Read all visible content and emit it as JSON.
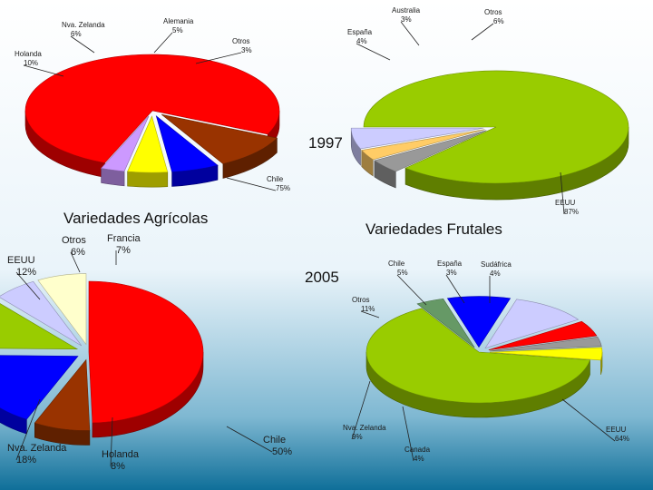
{
  "slide": {
    "title_1997": "1997",
    "title_2005": "2005",
    "heading_agricolas": "Variedades Agrícolas",
    "heading_frutales": "Variedades Frutales"
  },
  "colors": {
    "red": "#ff0000",
    "green": "#99cc00",
    "blue": "#0000ff",
    "brown": "#993300",
    "yellow": "#ffff00",
    "lavender": "#ccccff",
    "orchid": "#cc99ff",
    "gray": "#999999",
    "orange": "#ffcc66",
    "darkgreen": "#669966",
    "cream": "#ffffcc",
    "background_light": "#eaf4fa",
    "background_dark": "#0f6f99"
  },
  "chart_data": [
    {
      "type": "pie",
      "year": "1997",
      "group": "Variedades Agrícolas",
      "slices": [
        {
          "label": "Chile",
          "value_text": "75%",
          "value": 75,
          "color": "red"
        },
        {
          "label": "Holanda",
          "value_text": "10%",
          "value": 10,
          "color": "brown"
        },
        {
          "label": "Nva. Zelanda",
          "value_text": "6%",
          "value": 6,
          "color": "blue"
        },
        {
          "label": "Alemania",
          "value_text": "5%",
          "value": 5,
          "color": "yellow"
        },
        {
          "label": "Otros",
          "value_text": "3%",
          "value": 3,
          "color": "orchid"
        }
      ]
    },
    {
      "type": "pie",
      "year": "1997",
      "group": "Variedades Frutales",
      "slices": [
        {
          "label": "EEUU",
          "value_text": "87%",
          "value": 87,
          "color": "green"
        },
        {
          "label": "España",
          "value_text": "4%",
          "value": 4,
          "color": "gray"
        },
        {
          "label": "Australia",
          "value_text": "3%",
          "value": 3,
          "color": "orange"
        },
        {
          "label": "Otros",
          "value_text": "6%",
          "value": 6,
          "color": "lavender"
        }
      ]
    },
    {
      "type": "pie",
      "year": "2005",
      "group": "Variedades Agrícolas",
      "slices": [
        {
          "label": "Chile",
          "value_text": "50%",
          "value": 50,
          "color": "red"
        },
        {
          "label": "Holanda",
          "value_text": "8%",
          "value": 8,
          "color": "brown"
        },
        {
          "label": "Nva. Zelanda",
          "value_text": "18%",
          "value": 18,
          "color": "blue"
        },
        {
          "label": "EEUU",
          "value_text": "12%",
          "value": 12,
          "color": "green"
        },
        {
          "label": "Otros",
          "value_text": "6%",
          "value": 6,
          "color": "lavender"
        },
        {
          "label": "Francia",
          "value_text": "7%",
          "value": 7,
          "color": "cream"
        }
      ]
    },
    {
      "type": "pie",
      "year": "2005",
      "group": "Variedades Frutales",
      "slices": [
        {
          "label": "EEUU",
          "value_text": "64%",
          "value": 64,
          "color": "green"
        },
        {
          "label": "Canada",
          "value_text": "4%",
          "value": 4,
          "color": "darkgreen"
        },
        {
          "label": "Nva. Zelanda",
          "value_text": "9%",
          "value": 9,
          "color": "blue"
        },
        {
          "label": "Otros",
          "value_text": "11%",
          "value": 11,
          "color": "lavender"
        },
        {
          "label": "Chile",
          "value_text": "5%",
          "value": 5,
          "color": "red"
        },
        {
          "label": "España",
          "value_text": "3%",
          "value": 3,
          "color": "gray"
        },
        {
          "label": "Sudáfrica",
          "value_text": "4%",
          "value": 4,
          "color": "yellow"
        }
      ]
    }
  ]
}
